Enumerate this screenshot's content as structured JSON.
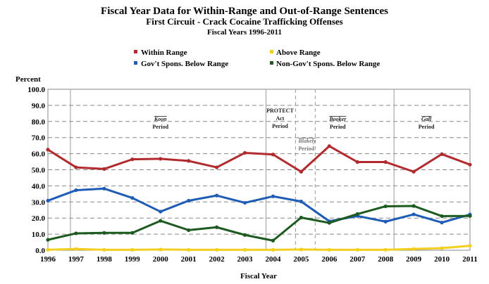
{
  "chart_data": {
    "type": "line",
    "title": "Fiscal Year Data for Within-Range and Out-of-Range Sentences",
    "subtitle": "First Circuit - Crack Cocaine Trafficking Offenses",
    "subtitle2": "Fiscal Years 1996-2011",
    "ylabel": "Percent",
    "xlabel": "Fiscal Year",
    "ylim": [
      0,
      100
    ],
    "yticks": [
      "0.0",
      "10.0",
      "20.0",
      "30.0",
      "40.0",
      "50.0",
      "60.0",
      "70.0",
      "80.0",
      "90.0",
      "100.0"
    ],
    "x": [
      "1996",
      "1997",
      "1998",
      "1999",
      "2000",
      "2001",
      "2002",
      "2003",
      "2004",
      "2005",
      "2006",
      "2007",
      "2008",
      "2009",
      "2010",
      "2011"
    ],
    "series": [
      {
        "name": "Within Range",
        "color": "#b22a2e",
        "values": [
          62.5,
          51.5,
          50.5,
          56.5,
          56.8,
          55.5,
          51.5,
          60.5,
          59.5,
          48.8,
          64.7,
          54.8,
          54.8,
          48.8,
          59.7,
          53.2
        ]
      },
      {
        "name": "Above Range",
        "color": "#f2cf1e",
        "values": [
          0.3,
          0.8,
          0.3,
          0.3,
          0.5,
          0.3,
          0.3,
          0.3,
          0.3,
          0.5,
          0.3,
          0.3,
          0.3,
          0.8,
          1.3,
          2.8
        ]
      },
      {
        "name": "Gov't Spons. Below Range",
        "color": "#1f5cb5",
        "values": [
          30.8,
          37.3,
          38.3,
          32.5,
          24.0,
          30.8,
          34.0,
          29.5,
          33.5,
          30.3,
          18.0,
          21.3,
          17.8,
          22.3,
          17.2,
          22.2
        ]
      },
      {
        "name": "Non-Gov't Spons. Below Range",
        "color": "#1c5a20",
        "values": [
          6.5,
          10.5,
          10.8,
          10.8,
          18.3,
          12.5,
          14.3,
          9.5,
          6.0,
          20.3,
          17.0,
          22.5,
          27.3,
          27.5,
          21.2,
          21.3
        ]
      }
    ],
    "grid": true,
    "legend_position": "top",
    "periods": [
      {
        "label_lines": [
          "Koon",
          "Period"
        ],
        "italic_first": true
      },
      {
        "label_lines": [
          "PROTECT",
          "Act",
          "Period"
        ],
        "italic_first": false
      },
      {
        "label_lines": [
          "Blakely",
          "Period"
        ],
        "italic_first": true,
        "muted": true
      },
      {
        "label_lines": [
          "Booker",
          "Period"
        ],
        "italic_first": true
      },
      {
        "label_lines": [
          "Gall",
          "Period"
        ],
        "italic_first": true
      }
    ],
    "period_boundaries": [
      1996.8,
      2003.75,
      2004.8,
      2005.5,
      2008.3
    ],
    "dashed_boundaries": [
      2004.8,
      2005.5
    ]
  }
}
